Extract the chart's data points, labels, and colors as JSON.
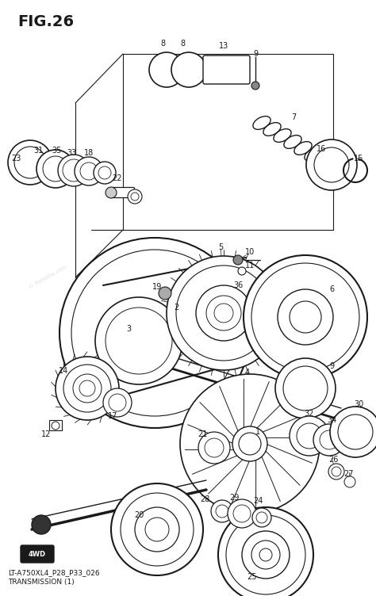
{
  "title": "FIG.26",
  "subtitle1": "LT-A750XL4_P28_P33_026",
  "subtitle2": "TRANSMISSION (1)",
  "bg_color": "#ffffff",
  "line_color": "#1a1a1a",
  "figsize": [
    4.74,
    7.52
  ],
  "dpi": 100
}
